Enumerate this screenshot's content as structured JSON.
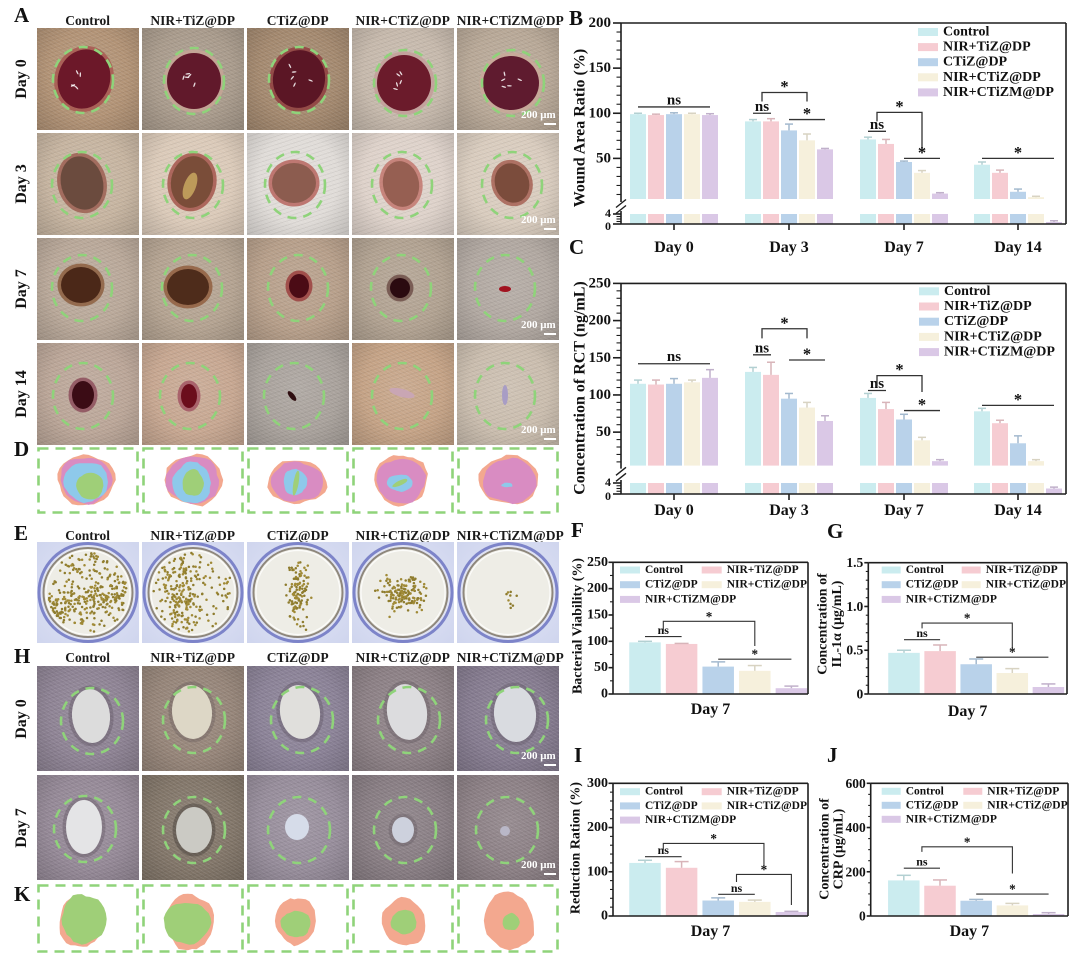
{
  "panels": {
    "A": {
      "letter": "A",
      "columns": [
        "Control",
        "NIR+TiZ@DP",
        "CTiZ@DP",
        "NIR+CTiZ@DP",
        "NIR+CTiZM@DP"
      ],
      "rows": [
        "Day 0",
        "Day 3",
        "Day 7",
        "Day 14"
      ],
      "scale_bar": "200 μm"
    },
    "D": {
      "letter": "D"
    },
    "E": {
      "letter": "E",
      "columns": [
        "Control",
        "NIR+TiZ@DP",
        "CTiZ@DP",
        "NIR+CTiZ@DP",
        "NIR+CTiZM@DP"
      ]
    },
    "H": {
      "letter": "H",
      "columns": [
        "Control",
        "NIR+TiZ@DP",
        "CTiZ@DP",
        "NIR+CTiZ@DP",
        "NIR+CTiZM@DP"
      ],
      "rows": [
        "Day 0",
        "Day 7"
      ],
      "scale_bar": "200 μm"
    },
    "K": {
      "letter": "K"
    }
  },
  "wound_trace_colors": [
    "#f3a88f",
    "#d98cc2",
    "#8ec9ea",
    "#9fcf78"
  ],
  "outline_color": "#8fd37a",
  "chart_data": [
    {
      "panel": "B",
      "type": "bar",
      "ylabel": [
        "Wound Area Ratio (%)"
      ],
      "categories": [
        "Day 0",
        "Day 3",
        "Day 7",
        "Day 14"
      ],
      "ylim": [
        0,
        200
      ],
      "y_break": [
        4,
        5
      ],
      "yticks": [
        "0",
        "4",
        "50",
        "100",
        "150",
        "200"
      ],
      "grid": false,
      "legend": "top-right",
      "series": [
        {
          "name": "Control",
          "color": "#cbecef",
          "values": [
            99,
            91,
            71,
            43
          ],
          "errors": [
            1,
            2,
            2.5,
            3
          ]
        },
        {
          "name": "NIR+TiZ@DP",
          "color": "#f6ccd2",
          "values": [
            98,
            91,
            66,
            34
          ],
          "errors": [
            1,
            3,
            5,
            3
          ]
        },
        {
          "name": "CTiZ@DP",
          "color": "#b9d2ea",
          "values": [
            99,
            81,
            46,
            13
          ],
          "errors": [
            1.5,
            7,
            1,
            3
          ]
        },
        {
          "name": "NIR+CTiZ@DP",
          "color": "#f6f0dc",
          "values": [
            99,
            70,
            34,
            7
          ],
          "errors": [
            1,
            7,
            2.5,
            1
          ]
        },
        {
          "name": "NIR+CTiZM@DP",
          "color": "#dac8e6",
          "values": [
            98,
            60,
            11,
            0.8
          ],
          "errors": [
            1.5,
            1,
            1,
            0.5
          ]
        }
      ],
      "annotations": [
        {
          "label": "ns",
          "category": 0,
          "from": 0,
          "to": 4,
          "y": 107,
          "type": "line"
        },
        {
          "label": "ns",
          "category": 1,
          "from": 0,
          "to": 1,
          "y": 100,
          "type": "line"
        },
        {
          "label": "*",
          "category": 1,
          "from": 0.5,
          "to": 3,
          "y": 123,
          "legs": [
            113,
            113
          ],
          "type": "bracket"
        },
        {
          "label": "*",
          "category": 1,
          "from": 2,
          "to": 4,
          "y": 93,
          "type": "line"
        },
        {
          "label": "ns",
          "category": 2,
          "from": 0,
          "to": 1,
          "y": 80,
          "type": "line"
        },
        {
          "label": "*",
          "category": 2,
          "from": 0.5,
          "to": 3,
          "y": 101,
          "legs": [
            91,
            57
          ],
          "type": "bracket"
        },
        {
          "label": "*",
          "category": 2,
          "from": 2,
          "to": 4,
          "y": 50,
          "type": "line"
        },
        {
          "label": "*",
          "category": 3,
          "from": 0,
          "to": 4,
          "y": 50,
          "type": "line"
        }
      ]
    },
    {
      "panel": "C",
      "type": "bar",
      "ylabel": [
        "Concentration of RCT (ng/mL)"
      ],
      "categories": [
        "Day 0",
        "Day 3",
        "Day 7",
        "Day 14"
      ],
      "ylim": [
        0,
        250
      ],
      "y_break": [
        4,
        5
      ],
      "yticks": [
        "0",
        "4",
        "50",
        "100",
        "150",
        "200",
        "250"
      ],
      "grid": false,
      "legend": "top-right",
      "series": [
        {
          "name": "Control",
          "color": "#cbecef",
          "values": [
            115,
            131,
            96,
            78
          ],
          "errors": [
            5,
            6,
            6,
            4
          ]
        },
        {
          "name": "NIR+TiZ@DP",
          "color": "#f6ccd2",
          "values": [
            114,
            127,
            81,
            62
          ],
          "errors": [
            6,
            17,
            9,
            4
          ]
        },
        {
          "name": "CTiZ@DP",
          "color": "#b9d2ea",
          "values": [
            115,
            95,
            67,
            35
          ],
          "errors": [
            7,
            7,
            7,
            10
          ]
        },
        {
          "name": "NIR+CTiZ@DP",
          "color": "#f6f0dc",
          "values": [
            117,
            83,
            39,
            11
          ],
          "errors": [
            3,
            7,
            4,
            2
          ]
        },
        {
          "name": "NIR+CTiZM@DP",
          "color": "#dac8e6",
          "values": [
            123,
            65,
            11,
            2
          ],
          "errors": [
            11,
            7,
            2,
            0.5
          ]
        }
      ],
      "annotations": [
        {
          "label": "ns",
          "category": 0,
          "from": 0,
          "to": 4,
          "y": 142,
          "type": "line"
        },
        {
          "label": "ns",
          "category": 1,
          "from": 0,
          "to": 1,
          "y": 154,
          "type": "line"
        },
        {
          "label": "*",
          "category": 1,
          "from": 0.5,
          "to": 3,
          "y": 189,
          "legs": [
            176,
            176
          ],
          "type": "bracket"
        },
        {
          "label": "*",
          "category": 1,
          "from": 2,
          "to": 4,
          "y": 147,
          "type": "line"
        },
        {
          "label": "ns",
          "category": 2,
          "from": 0,
          "to": 1,
          "y": 106,
          "type": "line"
        },
        {
          "label": "*",
          "category": 2,
          "from": 0.5,
          "to": 3,
          "y": 126,
          "legs": [
            111,
            104
          ],
          "type": "bracket"
        },
        {
          "label": "*",
          "category": 2,
          "from": 2,
          "to": 4,
          "y": 79,
          "type": "line"
        },
        {
          "label": "*",
          "category": 3,
          "from": 0,
          "to": 4,
          "y": 86,
          "type": "line"
        }
      ]
    },
    {
      "panel": "F",
      "type": "bar",
      "ylabel": [
        "Bacterial Viability (%)"
      ],
      "categories": [
        "Day 7"
      ],
      "ylim": [
        0,
        250
      ],
      "yticks": [
        "0",
        "50",
        "100",
        "150",
        "200",
        "250"
      ],
      "grid": false,
      "legend": "top",
      "series": [
        {
          "name": "Control",
          "color": "#cbecef",
          "values": [
            98
          ],
          "errors": [
            2
          ]
        },
        {
          "name": "NIR+TiZ@DP",
          "color": "#f6ccd2",
          "values": [
            95
          ],
          "errors": [
            1
          ]
        },
        {
          "name": "CTiZ@DP",
          "color": "#b9d2ea",
          "values": [
            52
          ],
          "errors": [
            9
          ]
        },
        {
          "name": "NIR+CTiZ@DP",
          "color": "#f6f0dc",
          "values": [
            44
          ],
          "errors": [
            10
          ]
        },
        {
          "name": "NIR+CTiZM@DP",
          "color": "#dac8e6",
          "values": [
            11
          ],
          "errors": [
            4
          ]
        }
      ],
      "annotations": [
        {
          "label": "ns",
          "category": 0,
          "from": 0,
          "to": 1,
          "y": 109,
          "type": "line"
        },
        {
          "label": "*",
          "category": 0,
          "from": 0.5,
          "to": 3,
          "y": 138,
          "legs": [
            118,
            91
          ],
          "type": "bracket"
        },
        {
          "label": "*",
          "category": 0,
          "from": 2,
          "to": 4,
          "y": 66,
          "type": "line"
        }
      ]
    },
    {
      "panel": "G",
      "type": "bar",
      "ylabel": [
        "Concentration of",
        "IL-1α (μg/mL)"
      ],
      "categories": [
        "Day 7"
      ],
      "ylim": [
        0,
        1.5
      ],
      "yticks": [
        "0",
        "0.5",
        "1.0",
        "1.5"
      ],
      "grid": false,
      "legend": "top",
      "series": [
        {
          "name": "Control",
          "color": "#cbecef",
          "values": [
            0.47
          ],
          "errors": [
            0.03
          ]
        },
        {
          "name": "NIR+TiZ@DP",
          "color": "#f6ccd2",
          "values": [
            0.49
          ],
          "errors": [
            0.07
          ]
        },
        {
          "name": "CTiZ@DP",
          "color": "#b9d2ea",
          "values": [
            0.34
          ],
          "errors": [
            0.06
          ]
        },
        {
          "name": "NIR+CTiZ@DP",
          "color": "#f6f0dc",
          "values": [
            0.24
          ],
          "errors": [
            0.05
          ]
        },
        {
          "name": "NIR+CTiZM@DP",
          "color": "#dac8e6",
          "values": [
            0.08
          ],
          "errors": [
            0.035
          ]
        }
      ],
      "annotations": [
        {
          "label": "ns",
          "category": 0,
          "from": 0,
          "to": 1,
          "y": 0.62,
          "type": "line"
        },
        {
          "label": "*",
          "category": 0,
          "from": 0.5,
          "to": 3,
          "y": 0.81,
          "legs": [
            0.75,
            0.52
          ],
          "type": "bracket"
        },
        {
          "label": "*",
          "category": 0,
          "from": 2,
          "to": 4,
          "y": 0.42,
          "type": "line"
        }
      ]
    },
    {
      "panel": "I",
      "type": "bar",
      "ylabel": [
        "Reduction Ration (%)"
      ],
      "categories": [
        "Day 7"
      ],
      "ylim": [
        0,
        300
      ],
      "yticks": [
        "0",
        "100",
        "200",
        "300"
      ],
      "grid": false,
      "legend": "top",
      "series": [
        {
          "name": "Control",
          "color": "#cbecef",
          "values": [
            120
          ],
          "errors": [
            6
          ]
        },
        {
          "name": "NIR+TiZ@DP",
          "color": "#f6ccd2",
          "values": [
            109
          ],
          "errors": [
            14
          ]
        },
        {
          "name": "CTiZ@DP",
          "color": "#b9d2ea",
          "values": [
            35
          ],
          "errors": [
            6
          ]
        },
        {
          "name": "NIR+CTiZ@DP",
          "color": "#f6f0dc",
          "values": [
            32
          ],
          "errors": [
            4
          ]
        },
        {
          "name": "NIR+CTiZM@DP",
          "color": "#dac8e6",
          "values": [
            9
          ],
          "errors": [
            1.5
          ]
        }
      ],
      "annotations": [
        {
          "label": "ns",
          "category": 0,
          "from": 0,
          "to": 1,
          "y": 134,
          "type": "line"
        },
        {
          "label": "*",
          "category": 0,
          "from": 0.5,
          "to": 3.25,
          "y": 164,
          "legs": [
            149,
            111
          ],
          "type": "bracket"
        },
        {
          "label": "*",
          "category": 0,
          "from": 2.5,
          "to": 4,
          "y": 94,
          "legs": [
            77,
            25
          ],
          "type": "bracket"
        },
        {
          "label": "ns",
          "category": 0,
          "from": 2,
          "to": 3,
          "y": 49,
          "type": "line"
        }
      ]
    },
    {
      "panel": "J",
      "type": "bar",
      "ylabel": [
        "Concentration of",
        "CRP (μg/mL)"
      ],
      "categories": [
        "Day 7"
      ],
      "ylim": [
        0,
        600
      ],
      "yticks": [
        "0",
        "200",
        "400",
        "600"
      ],
      "grid": false,
      "legend": "top",
      "series": [
        {
          "name": "Control",
          "color": "#cbecef",
          "values": [
            161
          ],
          "errors": [
            23
          ]
        },
        {
          "name": "NIR+TiZ@DP",
          "color": "#f6ccd2",
          "values": [
            137
          ],
          "errors": [
            26
          ]
        },
        {
          "name": "CTiZ@DP",
          "color": "#b9d2ea",
          "values": [
            69
          ],
          "errors": [
            6
          ]
        },
        {
          "name": "NIR+CTiZ@DP",
          "color": "#f6f0dc",
          "values": [
            48
          ],
          "errors": [
            9
          ]
        },
        {
          "name": "NIR+CTiZM@DP",
          "color": "#dac8e6",
          "values": [
            9
          ],
          "errors": [
            6
          ]
        }
      ],
      "annotations": [
        {
          "label": "ns",
          "category": 0,
          "from": 0,
          "to": 1,
          "y": 216,
          "type": "line"
        },
        {
          "label": "*",
          "category": 0,
          "from": 0.5,
          "to": 3,
          "y": 313,
          "legs": [
            290,
            192
          ],
          "type": "bracket"
        },
        {
          "label": "*",
          "category": 0,
          "from": 2,
          "to": 4,
          "y": 99,
          "type": "line"
        }
      ]
    }
  ]
}
